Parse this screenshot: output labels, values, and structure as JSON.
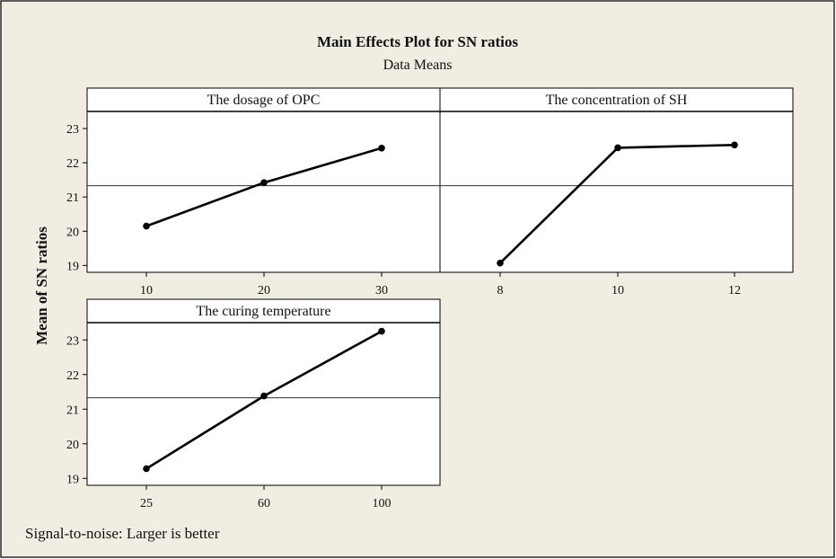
{
  "colors": {
    "background": "#f1ede3",
    "panel_fill": "#ffffff",
    "line": "#000000",
    "frame": "#2a2a2a"
  },
  "chart_data": {
    "type": "line",
    "title": "Main Effects Plot for SN ratios",
    "subtitle": "Data Means",
    "ylabel": "Mean of SN ratios",
    "footnote": "Signal-to-noise: Larger is better",
    "reference_mean": 21.33,
    "ylim": [
      18.8,
      23.5
    ],
    "yticks": [
      19,
      20,
      21,
      22,
      23
    ],
    "grid": false,
    "panels": [
      {
        "title": "The dosage of OPC",
        "categories": [
          "10",
          "20",
          "30"
        ],
        "values": [
          20.15,
          21.42,
          22.43
        ]
      },
      {
        "title": "The concentration of SH",
        "categories": [
          "8",
          "10",
          "12"
        ],
        "values": [
          19.07,
          22.44,
          22.52
        ]
      },
      {
        "title": "The curing temperature",
        "categories": [
          "25",
          "60",
          "100"
        ],
        "values": [
          19.28,
          21.38,
          23.25
        ]
      }
    ]
  }
}
